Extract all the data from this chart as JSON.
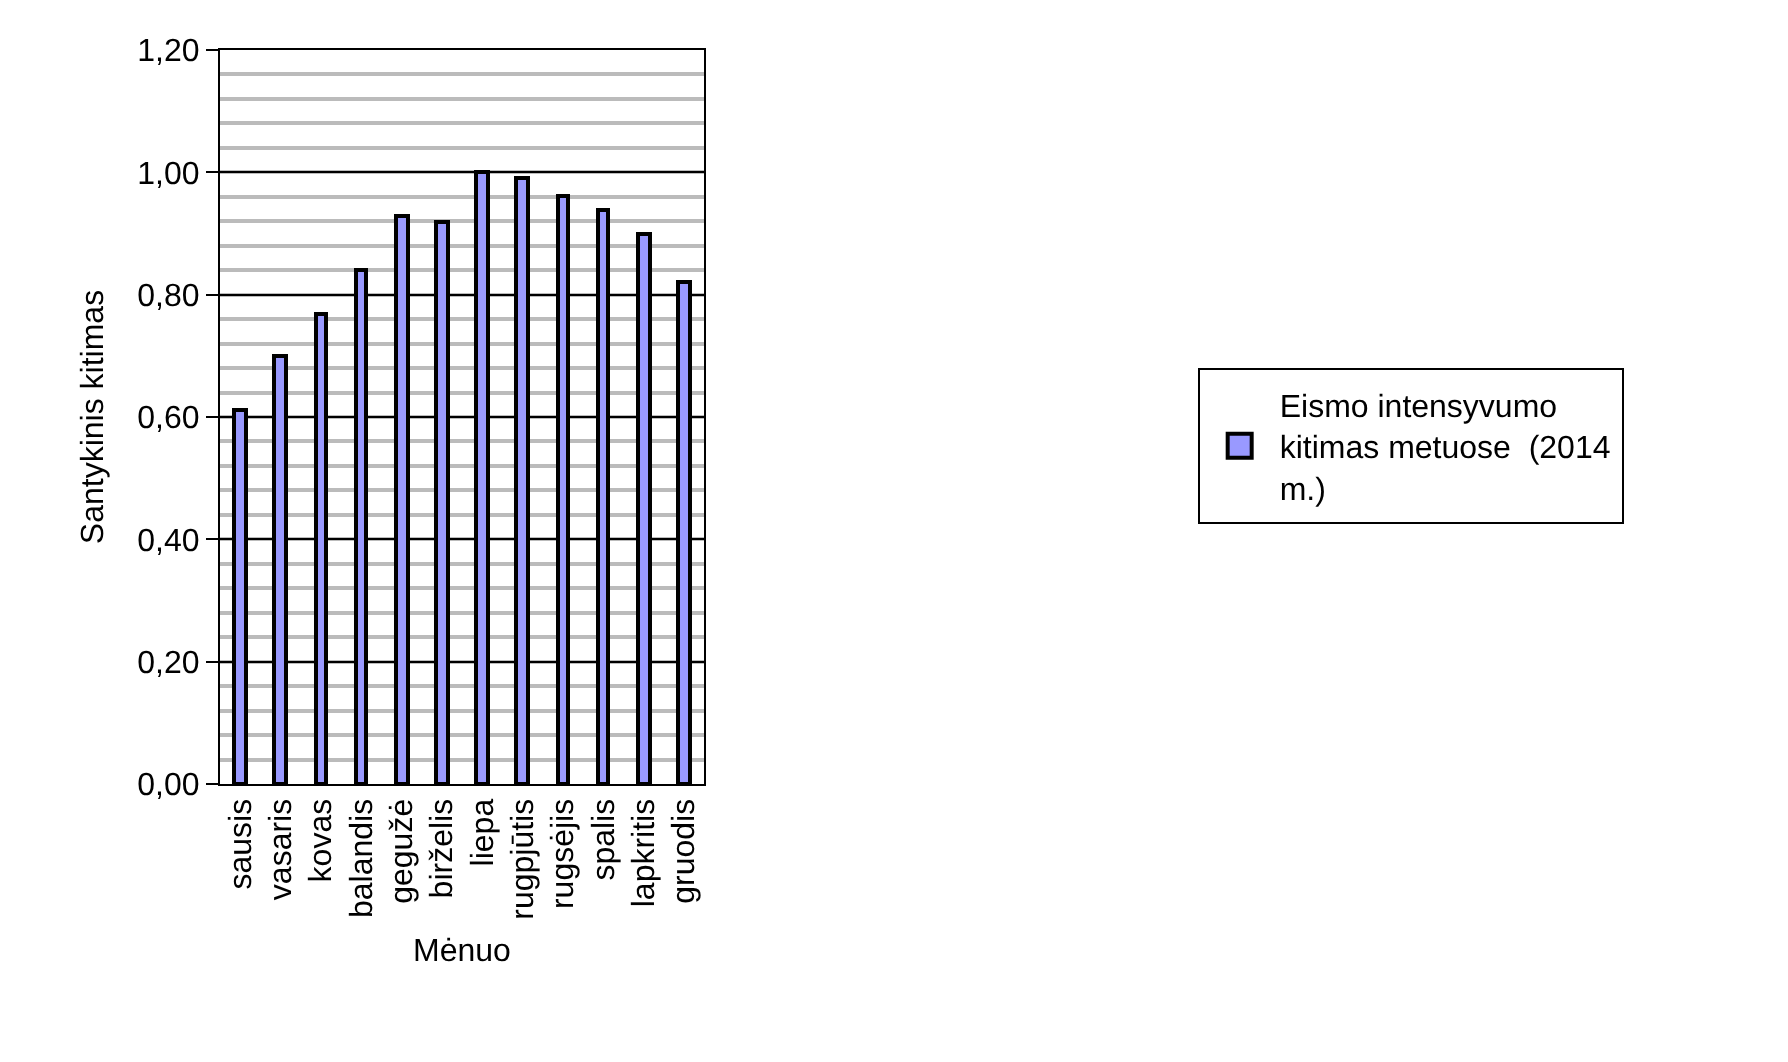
{
  "chart_data": {
    "type": "bar",
    "xlabel": "Mėnuo",
    "ylabel": "Santykinis kitimas",
    "categories": [
      "sausis",
      "vasaris",
      "kovas",
      "balandis",
      "gegužė",
      "birželis",
      "liepa",
      "rugpjūtis",
      "rugsėjis",
      "spalis",
      "lapkritis",
      "gruodis"
    ],
    "series": [
      {
        "name": "Eismo intensyvumo kitimas metuose  (2014 m.)",
        "color": "#9999ff",
        "values": [
          0.61,
          0.7,
          0.77,
          0.84,
          0.93,
          0.92,
          1.0,
          0.99,
          0.96,
          0.94,
          0.9,
          0.82
        ]
      }
    ],
    "ylim": [
      0,
      1.2
    ],
    "yticks": [
      {
        "value": 0,
        "label": "0,00"
      },
      {
        "value": 0.2,
        "label": "0,20"
      },
      {
        "value": 0.4,
        "label": "0,40"
      },
      {
        "value": 0.6,
        "label": "0,60"
      },
      {
        "value": 0.8,
        "label": "0,80"
      },
      {
        "value": 1.0,
        "label": "1,00"
      },
      {
        "value": 1.2,
        "label": "1,20"
      }
    ],
    "grid": "y",
    "legend": "right"
  }
}
